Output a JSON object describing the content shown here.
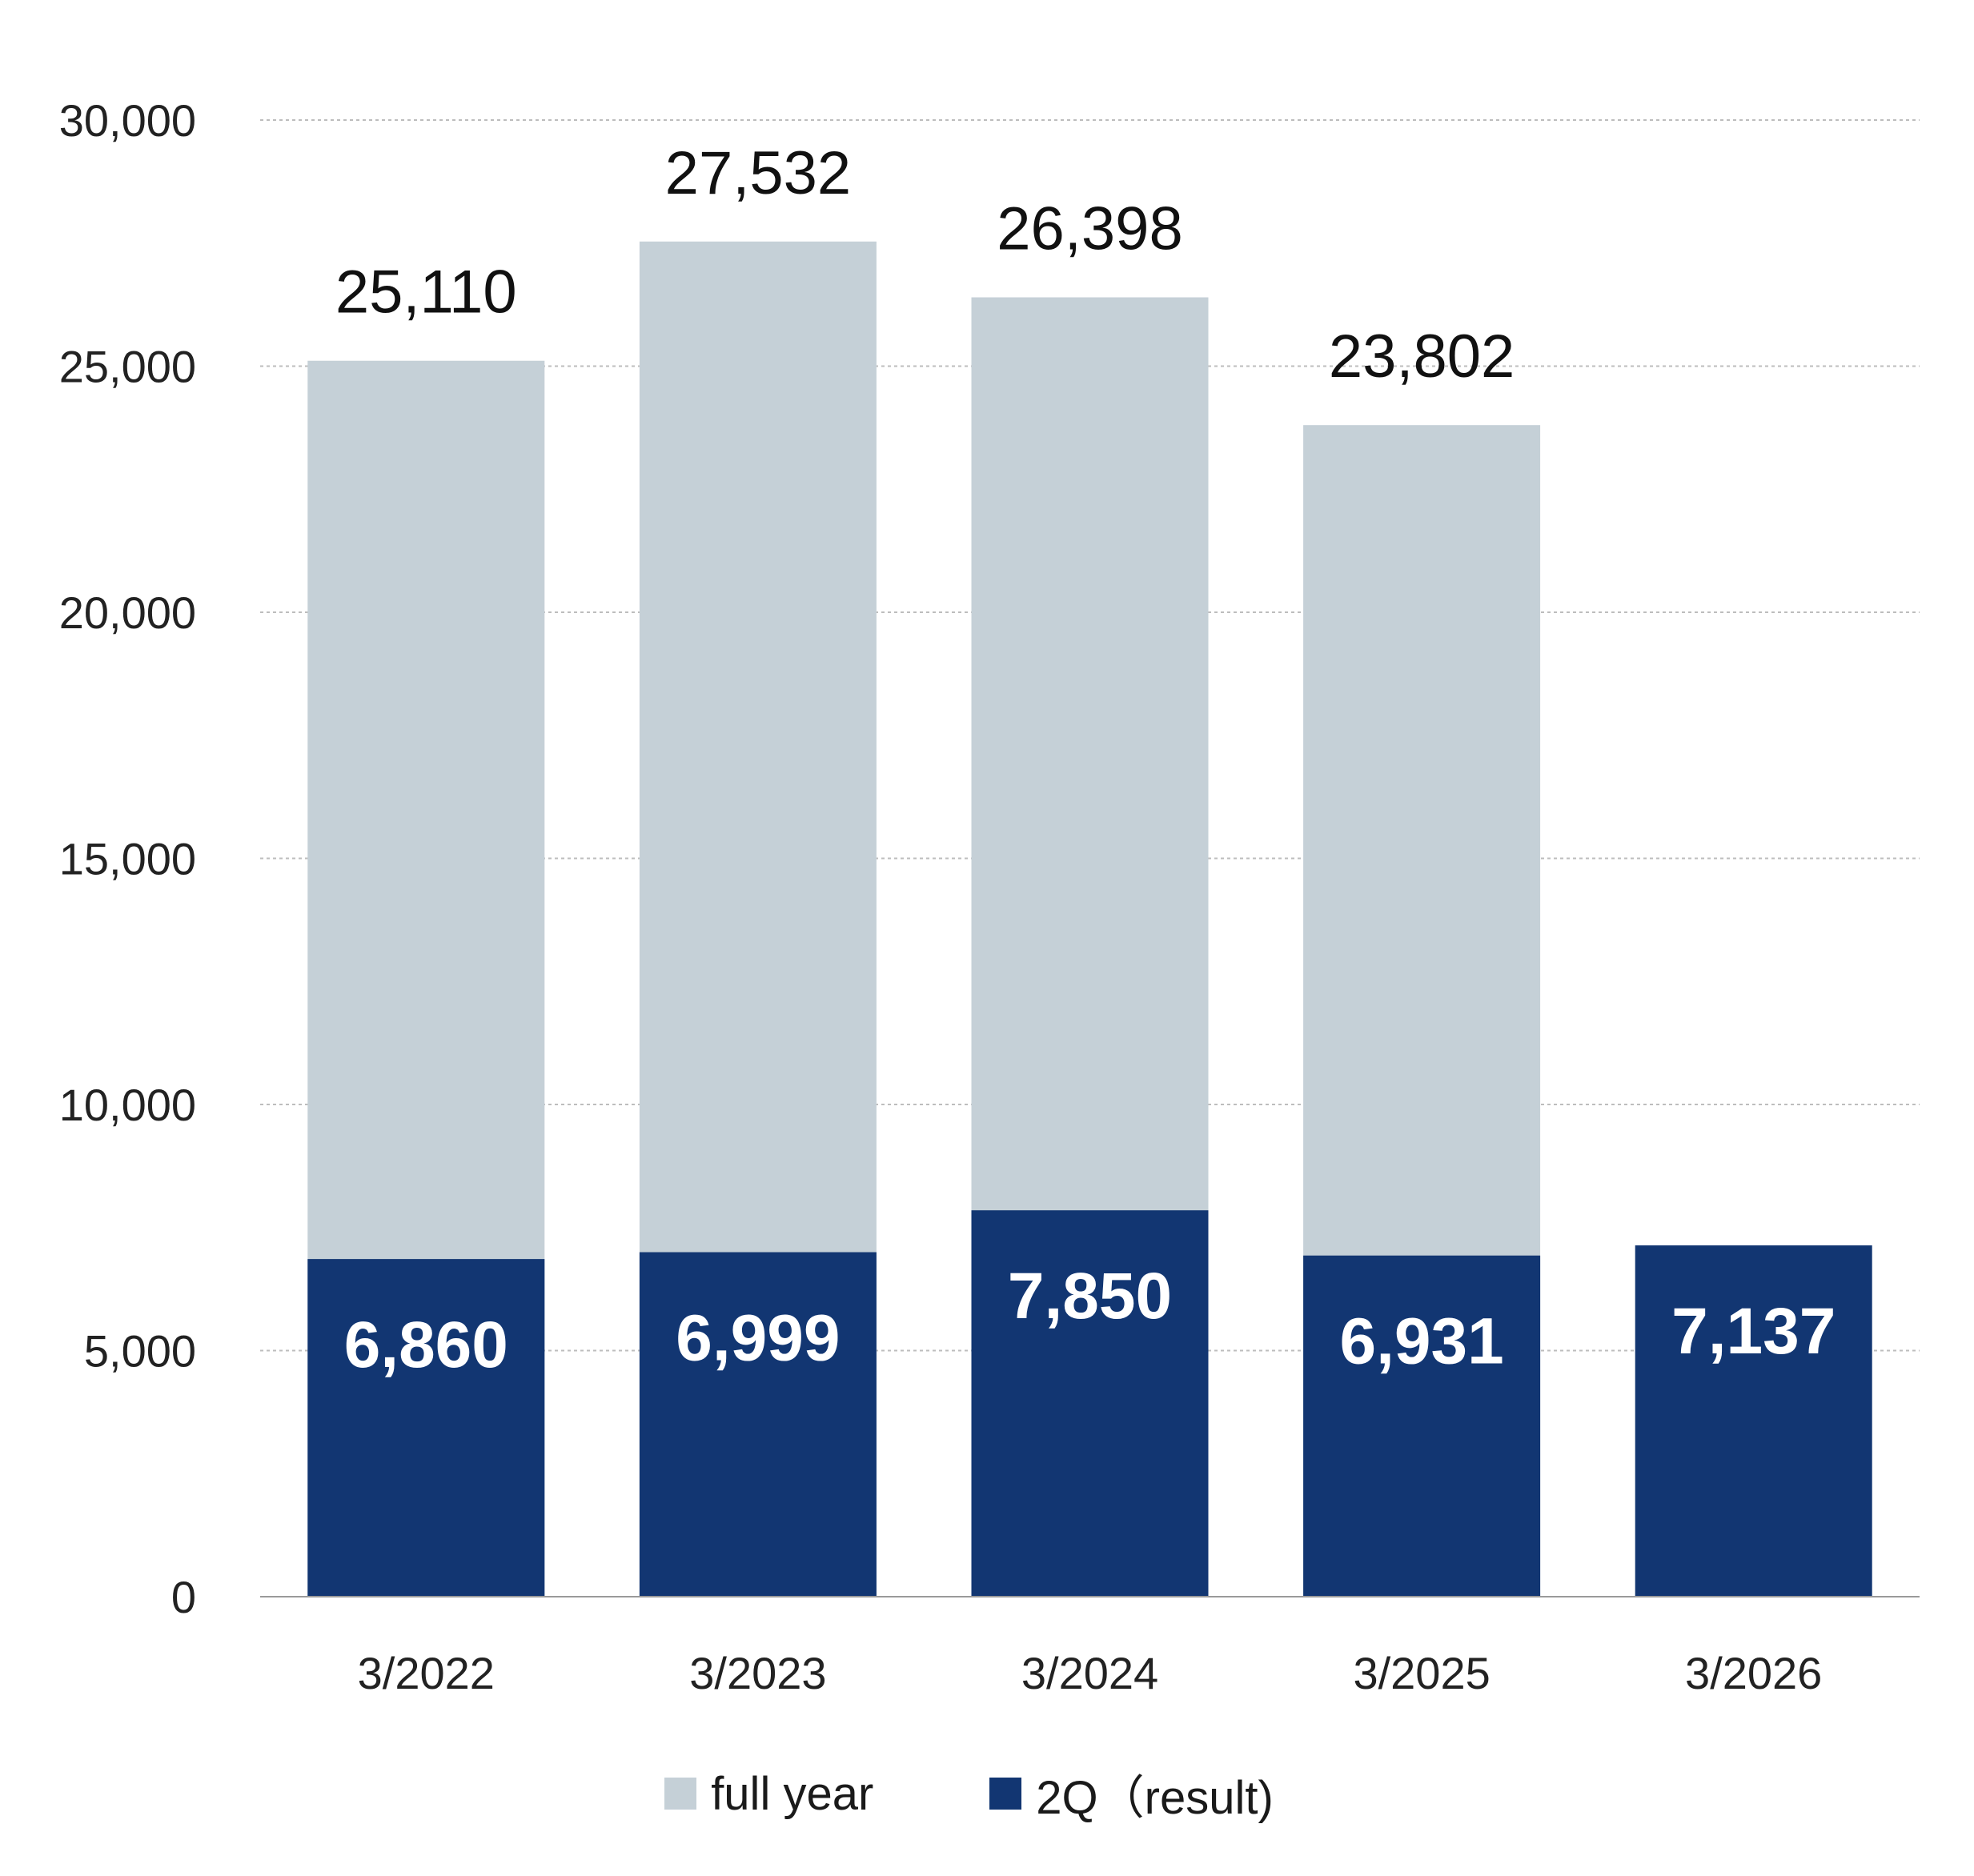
{
  "colors": {
    "full_year": "#C5D0D7",
    "q2": "#123672",
    "grid": "#BDBDBD",
    "axis": "#9A9A9A"
  },
  "legend": {
    "full_year": "full year",
    "q2": "2Q（result)"
  },
  "chart_data": {
    "type": "bar",
    "stacked": "overlay",
    "categories": [
      "3/2022",
      "3/2023",
      "3/2024",
      "3/2025",
      "3/2026"
    ],
    "series": [
      {
        "name": "full year",
        "values": [
          25110,
          27532,
          26398,
          23802,
          null
        ],
        "labels": [
          "25,110",
          "27,532",
          "26,398",
          "23,802",
          ""
        ]
      },
      {
        "name": "2Q（result)",
        "values": [
          6860,
          6999,
          7850,
          6931,
          7137
        ],
        "labels": [
          "6,860",
          "6,999",
          "7,850",
          "6,931",
          "7,137"
        ]
      }
    ],
    "ylim": [
      0,
      30000
    ],
    "yticks": [
      0,
      5000,
      10000,
      15000,
      20000,
      25000,
      30000
    ],
    "ytick_labels": [
      "0",
      "5,000",
      "10,000",
      "15,000",
      "20,000",
      "25,000",
      "30,000"
    ],
    "grid": true,
    "legend_position": "bottom",
    "title": "",
    "xlabel": "",
    "ylabel": ""
  }
}
